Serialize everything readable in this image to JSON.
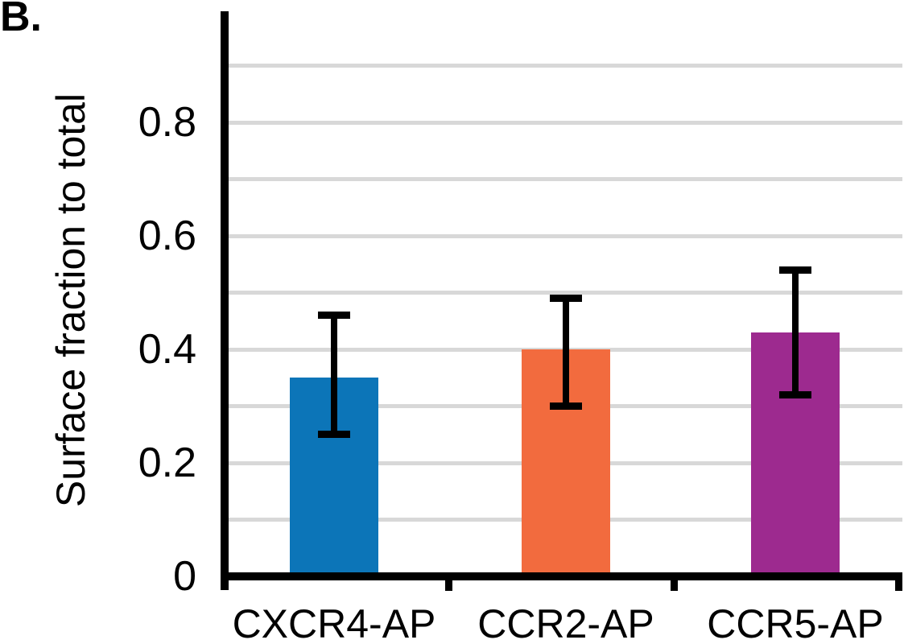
{
  "panel_label": "B.",
  "chart_data": {
    "type": "bar",
    "title": "",
    "xlabel": "",
    "ylabel": "Surface fraction to total",
    "categories": [
      "CXCR4-AP",
      "CCR2-AP",
      "CCR5-AP"
    ],
    "values": [
      0.35,
      0.4,
      0.43
    ],
    "error_bars": {
      "upper_caps": [
        0.46,
        0.49,
        0.54
      ],
      "lower_caps": [
        0.25,
        0.3,
        0.32
      ]
    },
    "bar_colors": [
      "#0c75b8",
      "#f26b3e",
      "#9d2a8f"
    ],
    "ylim": [
      0,
      1.0
    ],
    "yticks": {
      "values": [
        0,
        0.2,
        0.4,
        0.6,
        0.8
      ],
      "labels": [
        "0",
        "0.2",
        "0.4",
        "0.6",
        "0.8"
      ]
    },
    "gridlines": {
      "values": [
        0.1,
        0.2,
        0.3,
        0.4,
        0.5,
        0.6,
        0.7,
        0.8,
        0.9
      ],
      "color": "#d8d8d8"
    },
    "grid": "horizontal",
    "legend_position": "none",
    "axis_color": "#000000",
    "background": "#ffffff"
  }
}
